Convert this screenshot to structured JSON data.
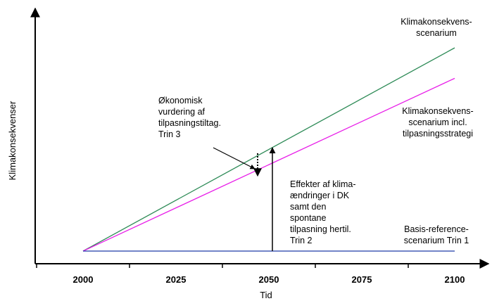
{
  "chart_data": {
    "type": "line",
    "xlabel": "Tid",
    "ylabel": "Klimakonsekvenser",
    "x_ticks": [
      2000,
      2025,
      2050,
      2075,
      2100
    ],
    "xlim": [
      2000,
      2100
    ],
    "ylim": [
      0,
      1
    ],
    "grid": false,
    "series": [
      {
        "color": "#2e8b57",
        "points": [
          [
            2000,
            0
          ],
          [
            2100,
            1.0
          ]
        ],
        "label_lines": [
          "Klimakonsekvens-",
          "scenarium"
        ]
      },
      {
        "color": "#e81ee8",
        "points": [
          [
            2000,
            0
          ],
          [
            2100,
            0.85
          ]
        ],
        "label_lines": [
          "Klimakonsekvens-",
          "scenarium incl.",
          "tilpasningsstrategi"
        ]
      },
      {
        "color": "#1f3aa8",
        "points": [
          [
            2000,
            0
          ],
          [
            2100,
            0
          ]
        ],
        "label_lines": [
          "Basis-reference-",
          "scenarium Trin 1"
        ]
      }
    ],
    "annotations": [
      {
        "name": "okonomisk-vurdering",
        "lines": [
          "Økonomisk",
          "vurdering  af",
          "tilpasningstiltag.",
          "Trin 3"
        ]
      },
      {
        "name": "effekter",
        "lines": [
          "Effekter af klima-",
          "ændringer i DK",
          "samt den",
          "spontane",
          "tilpasning hertil.",
          "Trin 2"
        ]
      }
    ]
  }
}
